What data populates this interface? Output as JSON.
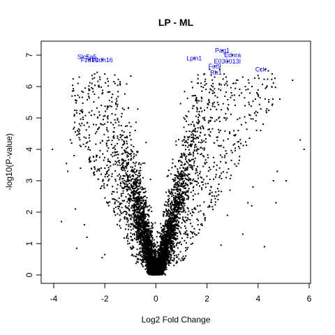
{
  "chart_data": {
    "type": "scatter",
    "title": "LP - ML",
    "xlabel": "Log2 Fold Change",
    "ylabel": "-log10(P-value)",
    "xlim": [
      -4.3,
      6.0
    ],
    "ylim": [
      -0.2,
      7.4
    ],
    "x_ticks": [
      -4,
      -2,
      0,
      2,
      4,
      6
    ],
    "y_ticks": [
      0,
      1,
      2,
      3,
      4,
      5,
      6,
      7
    ],
    "grid": false,
    "legend": "none",
    "point_color": "#000000",
    "label_color": "#0000ff",
    "labeled_genes": [
      {
        "name": "Slc5a5",
        "x": -2.7,
        "y": 6.95
      },
      {
        "name": "Fzd10",
        "x": -2.6,
        "y": 6.85
      },
      {
        "name": "Pcdh16",
        "x": -2.1,
        "y": 6.85
      },
      {
        "name": "Lpin1",
        "x": 1.5,
        "y": 6.9
      },
      {
        "name": "Pag1",
        "x": 2.6,
        "y": 7.15
      },
      {
        "name": "Ednra",
        "x": 3.0,
        "y": 7.0
      },
      {
        "name": "E030013I",
        "x": 2.8,
        "y": 6.8
      },
      {
        "name": "Fut9",
        "x": 2.3,
        "y": 6.65
      },
      {
        "name": "Rb1",
        "x": 2.35,
        "y": 6.45
      },
      {
        "name": "Cck",
        "x": 4.1,
        "y": 6.55
      }
    ],
    "outlier_points": [
      [
        -4.05,
        4.0
      ],
      [
        -3.7,
        1.7
      ],
      [
        -3.45,
        3.3
      ],
      [
        -3.5,
        3.55
      ],
      [
        -3.35,
        4.3
      ],
      [
        -3.3,
        4.2
      ],
      [
        -3.15,
        2.1
      ],
      [
        -3.1,
        0.85
      ],
      [
        -3.05,
        6.1
      ],
      [
        -3.0,
        6.3
      ],
      [
        -2.9,
        5.85
      ],
      [
        -2.8,
        1.6
      ],
      [
        -2.7,
        1.2
      ],
      [
        -2.6,
        5.9
      ],
      [
        -2.5,
        6.35
      ],
      [
        -2.4,
        6.4
      ],
      [
        -2.3,
        6.45
      ],
      [
        -2.2,
        6.3
      ],
      [
        -2.0,
        6.4
      ],
      [
        -1.9,
        6.25
      ],
      [
        -1.6,
        6.1
      ],
      [
        -1.4,
        6.05
      ],
      [
        -2.1,
        0.55
      ],
      [
        -2.0,
        0.65
      ],
      [
        -3.2,
        3.8
      ],
      [
        -2.95,
        3.4
      ],
      [
        5.8,
        4.0
      ],
      [
        5.65,
        4.3
      ],
      [
        5.35,
        6.2
      ],
      [
        4.85,
        5.6
      ],
      [
        4.7,
        2.3
      ],
      [
        4.6,
        3.0
      ],
      [
        4.55,
        6.4
      ],
      [
        4.4,
        6.5
      ],
      [
        4.3,
        6.55
      ],
      [
        4.2,
        4.8
      ],
      [
        4.1,
        4.6
      ],
      [
        4.0,
        6.35
      ],
      [
        3.9,
        5.6
      ],
      [
        3.8,
        2.8
      ],
      [
        3.75,
        2.2
      ],
      [
        3.6,
        2.3
      ],
      [
        3.5,
        6.0
      ],
      [
        3.4,
        6.3
      ],
      [
        3.2,
        6.2
      ],
      [
        3.1,
        5.4
      ],
      [
        3.05,
        6.1
      ],
      [
        2.95,
        5.8
      ],
      [
        2.9,
        2.7
      ],
      [
        2.8,
        1.9
      ],
      [
        2.75,
        6.3
      ],
      [
        2.5,
        6.55
      ],
      [
        2.3,
        6.3
      ],
      [
        2.1,
        6.55
      ],
      [
        1.9,
        6.4
      ],
      [
        4.25,
        0.9
      ],
      [
        3.4,
        1.3
      ],
      [
        2.55,
        0.95
      ],
      [
        4.75,
        3.3
      ],
      [
        5.1,
        3.0
      ]
    ]
  }
}
